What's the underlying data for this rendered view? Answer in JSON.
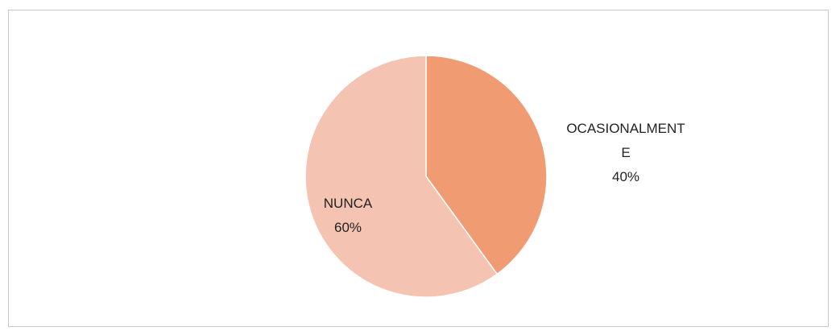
{
  "chart_data": {
    "type": "pie",
    "categories": [
      "OCASIONALMENTE",
      "NUNCA"
    ],
    "values": [
      40,
      60
    ],
    "value_labels": [
      "40%",
      "60%"
    ],
    "colors": [
      "#f09b72",
      "#f5c3b1"
    ]
  }
}
